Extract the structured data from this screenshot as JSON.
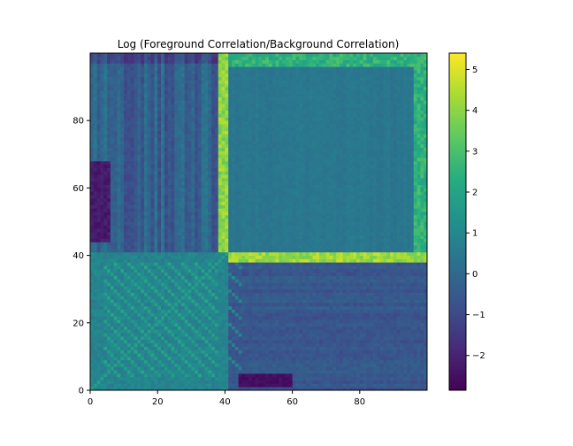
{
  "chart_data": {
    "type": "heatmap",
    "title": "Log (Foreground Correlation/Background Correlation)",
    "xlabel": "",
    "ylabel": "",
    "grid_size": 100,
    "xlim": [
      0,
      100
    ],
    "ylim": [
      0,
      100
    ],
    "x_ticks": [
      0,
      20,
      40,
      60,
      80
    ],
    "y_ticks": [
      0,
      20,
      40,
      60,
      80
    ],
    "x_tick_labels": [
      "0",
      "20",
      "40",
      "60",
      "80"
    ],
    "y_tick_labels": [
      "0",
      "20",
      "40",
      "60",
      "80"
    ],
    "colormap": "viridis",
    "color_range": [
      -2.85,
      5.4
    ],
    "colorbar_ticks": [
      -2,
      -1,
      0,
      1,
      2,
      3,
      4,
      5
    ],
    "colorbar_tick_labels": [
      "−2",
      "−1",
      "0",
      "1",
      "2",
      "3",
      "4",
      "5"
    ],
    "structure": {
      "boundary_index": 40,
      "bright_lines": [
        {
          "orientation": "vertical",
          "x_range": [
            38,
            41
          ],
          "y_range": [
            41,
            100
          ],
          "value": 4.0
        },
        {
          "orientation": "horizontal",
          "y_range": [
            38,
            41
          ],
          "x_range": [
            41,
            100
          ],
          "value": 4.2
        },
        {
          "orientation": "vertical",
          "x_range": [
            96,
            100
          ],
          "y_range": [
            41,
            100
          ],
          "value": 2.5
        },
        {
          "orientation": "horizontal",
          "y_range": [
            96,
            100
          ],
          "x_range": [
            41,
            100
          ],
          "value": 2.5
        }
      ],
      "blocks": [
        {
          "name": "lower-left",
          "x_range": [
            0,
            40
          ],
          "y_range": [
            0,
            40
          ],
          "value": 1.0
        },
        {
          "name": "upper-left",
          "x_range": [
            0,
            40
          ],
          "y_range": [
            41,
            100
          ],
          "value": -0.4
        },
        {
          "name": "upper-left-dark-patch",
          "x_range": [
            0,
            6
          ],
          "y_range": [
            44,
            68
          ],
          "value": -2.2
        },
        {
          "name": "upper-right",
          "x_range": [
            41,
            100
          ],
          "y_range": [
            41,
            100
          ],
          "value": 0.5
        },
        {
          "name": "lower-right",
          "x_range": [
            41,
            100
          ],
          "y_range": [
            0,
            40
          ],
          "value": -0.6
        },
        {
          "name": "lower-right-dark-strip",
          "x_range": [
            44,
            60
          ],
          "y_range": [
            1,
            5
          ],
          "value": -2.5
        }
      ]
    }
  }
}
